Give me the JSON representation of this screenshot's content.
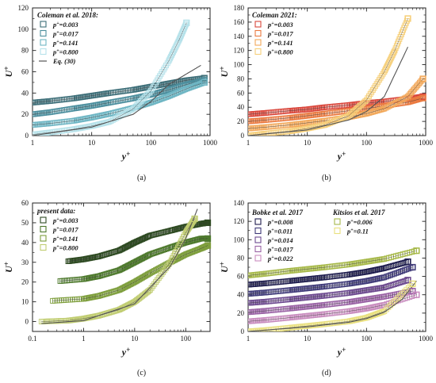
{
  "chart_data": [
    {
      "type": "scatter",
      "panel": "(a)",
      "caption": "(a)",
      "legend_title": "Coleman et al. 2018:",
      "legend_position": "top-left",
      "xscale": "log",
      "xlim": [
        1,
        1000
      ],
      "ylim": [
        0,
        120
      ],
      "xticks": [
        1,
        10,
        100,
        1000
      ],
      "xtick_labels": [
        "1",
        "10",
        "100",
        "1000"
      ],
      "yticks": [
        0,
        20,
        40,
        60,
        80,
        100,
        120
      ],
      "ytick_labels": [
        "0",
        "20",
        "40",
        "60",
        "80",
        "100",
        "120"
      ],
      "xlabel": "y+",
      "ylabel": "U+",
      "series": [
        {
          "name": "p+=0.003",
          "color": "#3d6e78",
          "x": [
            1,
            2,
            5,
            10,
            20,
            50,
            100,
            200,
            400,
            800
          ],
          "y": [
            31,
            32.5,
            35,
            37.5,
            40,
            43,
            46,
            49,
            52,
            54
          ]
        },
        {
          "name": "p+=0.017",
          "color": "#4d8f9e",
          "x": [
            1,
            2,
            5,
            10,
            20,
            50,
            100,
            200,
            400,
            800
          ],
          "y": [
            20,
            22,
            25.5,
            28,
            31,
            35,
            38.5,
            43,
            48,
            52
          ]
        },
        {
          "name": "p+=0.141",
          "color": "#6fb6c4",
          "x": [
            1,
            2,
            5,
            10,
            20,
            50,
            100,
            200,
            400,
            800
          ],
          "y": [
            10,
            11.5,
            14,
            17,
            20.5,
            26,
            31,
            37,
            44,
            50
          ]
        },
        {
          "name": "p+=0.800",
          "color": "#b6e2ea",
          "x": [
            1,
            2,
            5,
            10,
            20,
            50,
            100,
            200,
            300,
            400
          ],
          "y": [
            1,
            3,
            6,
            9,
            13,
            25,
            42,
            70,
            90,
            106
          ]
        },
        {
          "name": "Eq. (30)",
          "color": "#555555",
          "line": true,
          "x": [
            1,
            10,
            50,
            100,
            200,
            400,
            700
          ],
          "y": [
            0,
            8,
            20,
            32,
            48,
            58,
            66
          ]
        }
      ]
    },
    {
      "type": "scatter",
      "panel": "(b)",
      "caption": "(b)",
      "legend_title": "Coleman 2021:",
      "legend_position": "top-left",
      "xscale": "log",
      "xlim": [
        1,
        1000
      ],
      "ylim": [
        0,
        180
      ],
      "xticks": [
        1,
        10,
        100,
        1000
      ],
      "xtick_labels": [
        "1",
        "10",
        "100",
        "1000"
      ],
      "yticks": [
        0,
        20,
        40,
        60,
        80,
        100,
        120,
        140,
        160,
        180
      ],
      "ytick_labels": [
        "0",
        "20",
        "40",
        "60",
        "80",
        "100",
        "120",
        "140",
        "160",
        "180"
      ],
      "xlabel": "y+",
      "ylabel": "U+",
      "series": [
        {
          "name": "p+=0.003",
          "color": "#d9463b",
          "x": [
            1,
            2,
            5,
            10,
            20,
            50,
            100,
            200,
            500,
            900
          ],
          "y": [
            30,
            32,
            35,
            37,
            40,
            43,
            46,
            48,
            52,
            55
          ]
        },
        {
          "name": "p+=0.017",
          "color": "#ea7a40",
          "x": [
            1,
            2,
            5,
            10,
            20,
            50,
            100,
            200,
            500,
            900
          ],
          "y": [
            20,
            22,
            25,
            28,
            31,
            35,
            38,
            42,
            47,
            53
          ]
        },
        {
          "name": "p+=0.141",
          "color": "#f2a85a",
          "x": [
            1,
            2,
            5,
            10,
            20,
            50,
            100,
            200,
            500,
            900
          ],
          "y": [
            10,
            12,
            15,
            18,
            21,
            26,
            31,
            38,
            55,
            80
          ]
        },
        {
          "name": "p+=0.800",
          "color": "#f6cf7a",
          "x": [
            1,
            2,
            5,
            10,
            20,
            50,
            100,
            200,
            300,
            500
          ],
          "y": [
            0,
            3,
            6,
            10,
            15,
            28,
            50,
            90,
            120,
            165
          ]
        },
        {
          "name": "",
          "color": "#555555",
          "line": true,
          "x": [
            1,
            10,
            50,
            100,
            200,
            500
          ],
          "y": [
            0,
            8,
            22,
            34,
            55,
            125
          ]
        }
      ]
    },
    {
      "type": "scatter",
      "panel": "(c)",
      "caption": "(c)",
      "legend_title": "present data:",
      "legend_position": "top-left",
      "xscale": "log",
      "xlim": [
        0.1,
        300
      ],
      "ylim": [
        -5,
        60
      ],
      "xticks": [
        0.1,
        1,
        10,
        100
      ],
      "xtick_labels": [
        "0.1",
        "1",
        "10",
        "100"
      ],
      "yticks": [
        0,
        10,
        20,
        30,
        40,
        50,
        60
      ],
      "ytick_labels": [
        "0",
        "10",
        "20",
        "30",
        "40",
        "50",
        "60"
      ],
      "xlabel": "y+",
      "ylabel": "U+",
      "series": [
        {
          "name": "p+=0.003",
          "color": "#2e4a22",
          "x": [
            0.5,
            1,
            2,
            5,
            10,
            20,
            50,
            100,
            200,
            270
          ],
          "y": [
            30.5,
            31.5,
            33,
            36,
            40,
            43.5,
            46,
            48,
            49.5,
            50
          ]
        },
        {
          "name": "p+=0.017",
          "color": "#4f7a2e",
          "x": [
            0.35,
            1,
            2,
            5,
            10,
            20,
            50,
            100,
            200,
            270
          ],
          "y": [
            20.5,
            21.5,
            23,
            26,
            30,
            34,
            37.5,
            40,
            42,
            42
          ]
        },
        {
          "name": "p+=0.141",
          "color": "#7f9f3e",
          "x": [
            0.25,
            1,
            2,
            5,
            10,
            20,
            50,
            100,
            200,
            270
          ],
          "y": [
            10.5,
            11.5,
            13,
            16,
            20,
            24.5,
            30,
            34,
            37,
            38.5
          ]
        },
        {
          "name": "p+=0.800",
          "color": "#c1cd72",
          "x": [
            0.15,
            0.5,
            1,
            2,
            5,
            10,
            20,
            50,
            100,
            150
          ],
          "y": [
            0,
            0.5,
            1.5,
            3,
            6,
            10,
            16,
            30,
            45,
            52
          ]
        },
        {
          "name": "",
          "color": "#555555",
          "line": true,
          "x": [
            0.15,
            1,
            10,
            50,
            100,
            170
          ],
          "y": [
            -1,
            0.5,
            9,
            28,
            42,
            57
          ]
        }
      ]
    },
    {
      "type": "scatter",
      "panel": "(d)",
      "caption": "(d)",
      "legend_title": "Bobke et al. 2017",
      "legend_title_2": "Kitsios et al. 2017",
      "legend_position": "top-left",
      "xscale": "log",
      "xlim": [
        1,
        1000
      ],
      "ylim": [
        0,
        140
      ],
      "xticks": [
        1,
        10,
        100,
        1000
      ],
      "xtick_labels": [
        "1",
        "10",
        "100",
        "1000"
      ],
      "yticks": [
        0,
        20,
        40,
        60,
        80,
        100,
        120,
        140
      ],
      "ytick_labels": [
        "0",
        "20",
        "40",
        "60",
        "80",
        "100",
        "120",
        "140"
      ],
      "xlabel": "y+",
      "ylabel": "U+",
      "series": [
        {
          "name": "p+=0.008",
          "color": "#1e1d4d",
          "x": [
            1,
            2,
            5,
            10,
            20,
            50,
            100,
            200,
            500
          ],
          "y": [
            51,
            52.5,
            55,
            57,
            59,
            62,
            65,
            69,
            76
          ]
        },
        {
          "name": "p+=0.011",
          "color": "#3f3a78",
          "x": [
            1,
            2,
            5,
            10,
            20,
            50,
            100,
            200,
            600
          ],
          "y": [
            41,
            42.5,
            45,
            47,
            49,
            52,
            55,
            59,
            70
          ]
        },
        {
          "name": "p+=0.014",
          "color": "#6d4a8f",
          "x": [
            1,
            2,
            5,
            10,
            20,
            50,
            100,
            200,
            500
          ],
          "y": [
            31,
            32.5,
            35,
            37,
            39,
            42,
            45,
            48,
            56
          ]
        },
        {
          "name": "p+=0.017",
          "color": "#9a63a5",
          "x": [
            1,
            2,
            5,
            10,
            20,
            50,
            100,
            200,
            600
          ],
          "y": [
            21,
            22.5,
            25,
            27,
            29,
            32,
            35,
            38,
            44
          ]
        },
        {
          "name": "p+=0.022",
          "color": "#c98dbf",
          "x": [
            1,
            2,
            5,
            10,
            20,
            50,
            100,
            200,
            700
          ],
          "y": [
            11,
            12.5,
            15,
            17,
            19,
            22,
            25,
            29,
            40
          ]
        },
        {
          "name": "p+=0.006",
          "color": "#a7b94a",
          "x": [
            1,
            2,
            5,
            10,
            20,
            50,
            100,
            200,
            700
          ],
          "y": [
            61,
            63,
            66,
            68,
            70,
            73,
            76,
            79,
            88
          ]
        },
        {
          "name": "p+=0.11",
          "color": "#e9e07e",
          "x": [
            1,
            2,
            5,
            10,
            20,
            50,
            100,
            200,
            600
          ],
          "y": [
            0,
            1.5,
            4,
            6,
            8,
            11,
            15,
            22,
            52
          ]
        },
        {
          "name": "",
          "color": "#555555",
          "line": true,
          "x": [
            1,
            10,
            50,
            100,
            200,
            400,
            700
          ],
          "y": [
            0,
            5,
            10,
            14,
            21,
            35,
            55
          ]
        }
      ]
    }
  ]
}
